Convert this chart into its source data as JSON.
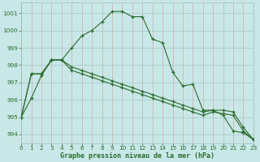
{
  "title": "Graphe pression niveau de la mer (hPa)",
  "background_color": "#c8e8e8",
  "grid_color_major": "#d4a0a0",
  "grid_color_minor": "#b8d8d8",
  "line_color": "#2d6b2d",
  "line1_x": [
    0,
    1,
    2,
    3,
    4,
    5,
    6,
    7,
    8,
    9,
    10,
    11,
    12,
    13,
    14,
    15,
    16,
    17,
    18,
    19,
    20,
    21,
    22,
    23
  ],
  "line1_y": [
    995.0,
    996.1,
    997.4,
    998.3,
    998.3,
    999.0,
    999.7,
    1000.0,
    1000.5,
    1001.1,
    1001.1,
    1000.8,
    1000.8,
    999.5,
    999.3,
    997.6,
    996.8,
    996.9,
    995.4,
    995.4,
    995.1,
    994.2,
    994.1,
    993.7
  ],
  "line2_x": [
    0,
    1,
    2,
    3,
    4,
    5,
    6,
    7,
    8,
    9,
    10,
    11,
    12,
    13,
    14,
    15,
    16,
    17,
    18,
    19,
    20,
    21,
    22,
    23
  ],
  "line2_y": [
    995.0,
    997.5,
    997.5,
    998.3,
    998.3,
    997.9,
    997.7,
    997.5,
    997.3,
    997.1,
    996.9,
    996.7,
    996.5,
    996.3,
    996.1,
    995.9,
    995.7,
    995.5,
    995.3,
    995.4,
    995.4,
    995.3,
    994.4,
    993.7
  ],
  "line3_x": [
    0,
    1,
    2,
    3,
    4,
    5,
    6,
    7,
    8,
    9,
    10,
    11,
    12,
    13,
    14,
    15,
    16,
    17,
    18,
    19,
    20,
    21,
    22,
    23
  ],
  "line3_y": [
    995.0,
    997.5,
    997.5,
    998.3,
    998.3,
    997.7,
    997.5,
    997.3,
    997.1,
    996.9,
    996.7,
    996.5,
    996.3,
    996.1,
    995.9,
    995.7,
    995.5,
    995.3,
    995.1,
    995.3,
    995.2,
    995.1,
    994.2,
    993.7
  ],
  "ylim": [
    993.5,
    1001.6
  ],
  "yticks": [
    994,
    995,
    996,
    997,
    998,
    999,
    1000,
    1001
  ],
  "xlim": [
    0,
    23
  ],
  "xticks": [
    0,
    1,
    2,
    3,
    4,
    5,
    6,
    7,
    8,
    9,
    10,
    11,
    12,
    13,
    14,
    15,
    16,
    17,
    18,
    19,
    20,
    21,
    22,
    23
  ],
  "xlabel_fontsize": 6.0,
  "tick_fontsize": 5.2,
  "figsize": [
    3.2,
    2.0
  ],
  "dpi": 100
}
